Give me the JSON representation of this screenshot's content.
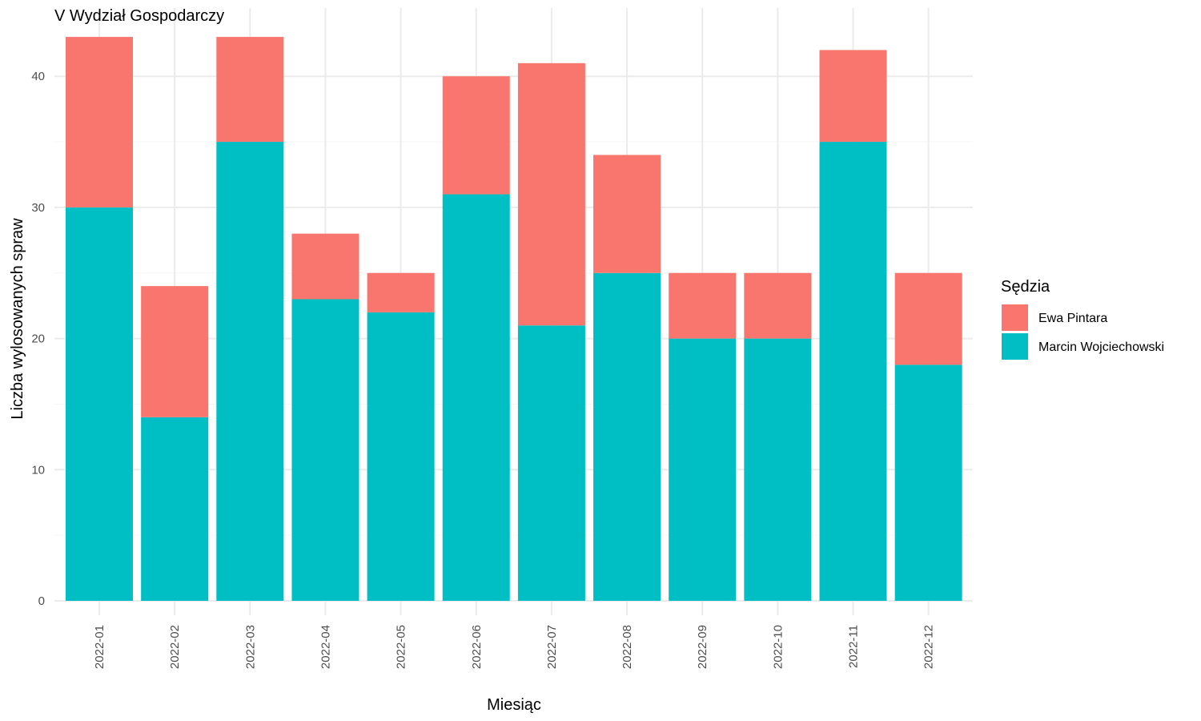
{
  "chart_data": {
    "type": "bar",
    "stacked": true,
    "title": "V Wydział Gospodarczy",
    "xlabel": "Miesiąc",
    "ylabel": "Liczba wylosowanych spraw",
    "categories": [
      "2022-01",
      "2022-02",
      "2022-03",
      "2022-04",
      "2022-05",
      "2022-06",
      "2022-07",
      "2022-08",
      "2022-09",
      "2022-10",
      "2022-11",
      "2022-12"
    ],
    "series": [
      {
        "name": "Marcin Wojciechowski",
        "color": "#00BFC4",
        "values": [
          30,
          14,
          35,
          23,
          22,
          31,
          21,
          25,
          20,
          20,
          35,
          18
        ]
      },
      {
        "name": "Ewa Pintara",
        "color": "#F8766D",
        "values": [
          13,
          10,
          8,
          5,
          3,
          9,
          20,
          9,
          5,
          5,
          7,
          7
        ]
      }
    ],
    "ylim": [
      0,
      45
    ],
    "yticks": [
      0,
      10,
      20,
      30,
      40
    ],
    "grid": true,
    "legend": {
      "title": "Sędzia",
      "placement": "right",
      "entries": [
        "Ewa Pintara",
        "Marcin Wojciechowski"
      ]
    }
  }
}
